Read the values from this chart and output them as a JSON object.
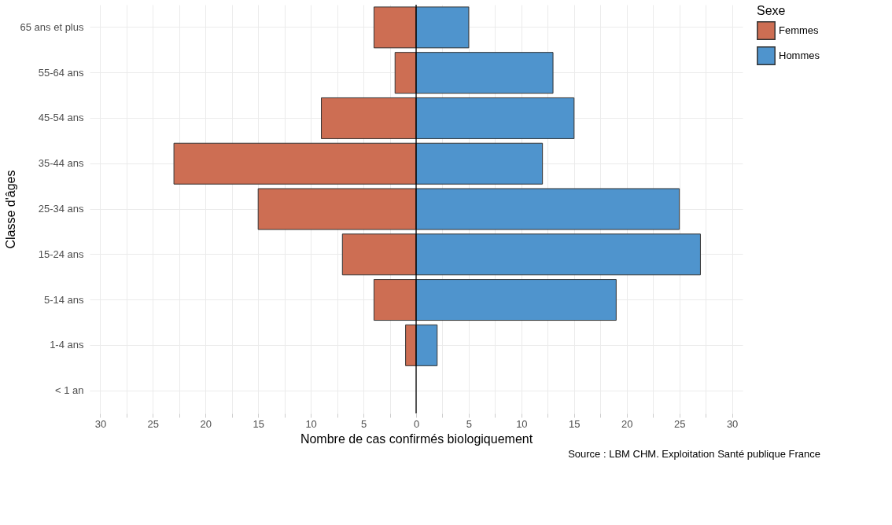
{
  "chart_data": {
    "type": "bar",
    "orientation": "horizontal",
    "stacked": true,
    "xlabel": "Nombre de cas confirmés biologiquement",
    "ylabel": "Classe d'âges",
    "legend_title": "Sexe",
    "legend": "right",
    "categories": [
      "65 ans et plus",
      "55-64 ans",
      "45-54 ans",
      "35-44 ans",
      "25-34 ans",
      "15-24 ans",
      "5-14 ans",
      "1-4 ans",
      "< 1 an"
    ],
    "series": [
      {
        "name": "Femmes",
        "color": "#cd6e53",
        "values": [
          -4,
          -2,
          -9,
          -23,
          -15,
          -7,
          -4,
          -1,
          null
        ]
      },
      {
        "name": "Hommes",
        "color": "#4f94cd",
        "values": [
          5,
          13,
          15,
          12,
          25,
          27,
          19,
          2,
          null
        ]
      }
    ],
    "xlim": [
      -31,
      31
    ],
    "xticks": [
      {
        "value": -30,
        "label": "30"
      },
      {
        "value": -27.5,
        "label": null
      },
      {
        "value": -25,
        "label": "25"
      },
      {
        "value": -22.5,
        "label": null
      },
      {
        "value": -20,
        "label": "20"
      },
      {
        "value": -17.5,
        "label": null
      },
      {
        "value": -15,
        "label": "15"
      },
      {
        "value": -12.5,
        "label": null
      },
      {
        "value": -10,
        "label": "10"
      },
      {
        "value": -7.5,
        "label": null
      },
      {
        "value": -5,
        "label": "5"
      },
      {
        "value": -2.5,
        "label": null
      },
      0,
      {
        "value": 2.5,
        "label": null
      },
      5,
      {
        "value": 7.5,
        "label": null
      },
      10,
      {
        "value": 12.5,
        "label": null
      },
      15,
      {
        "value": 17.5,
        "label": null
      },
      20,
      {
        "value": 22.5,
        "label": null
      },
      25,
      {
        "value": 27.5,
        "label": null
      },
      30
    ],
    "grid": true,
    "ref_lines": [
      {
        "axis": "x",
        "value": 0,
        "color": "#000000"
      }
    ],
    "annotations": [
      "Source : LBM CHM. Exploitation Santé publique France"
    ]
  }
}
